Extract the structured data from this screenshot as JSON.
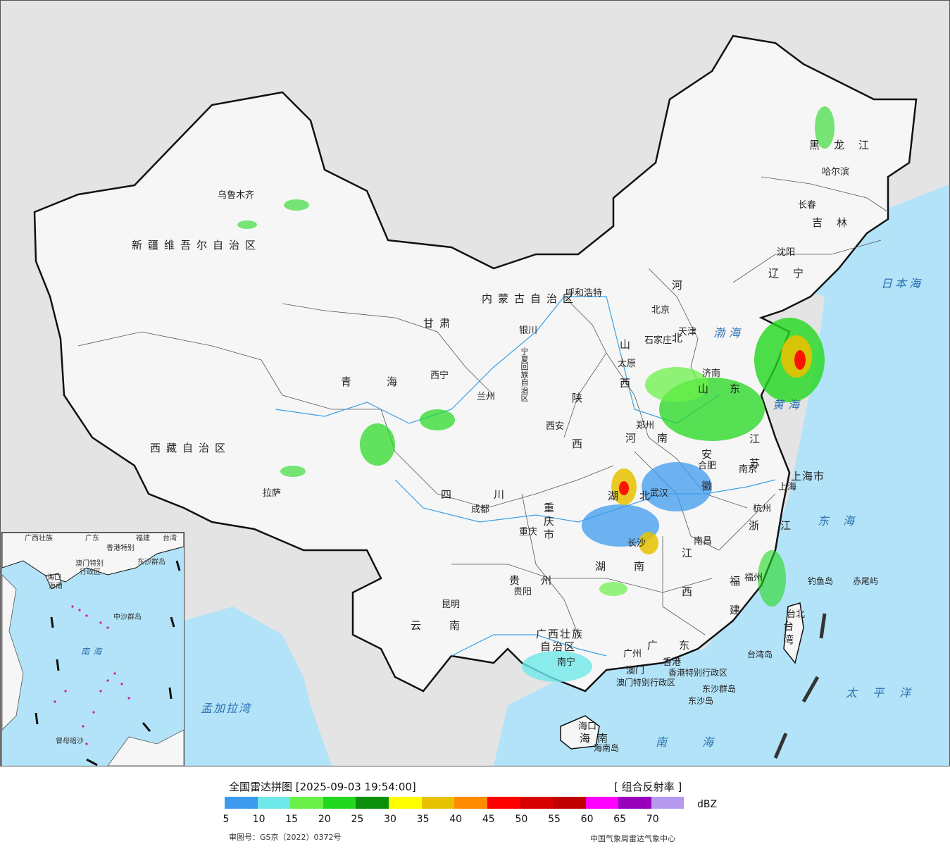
{
  "map": {
    "provinces": [
      {
        "id": "xinjiang",
        "name": "新疆维吾尔自治区"
      },
      {
        "id": "xizang",
        "name": "西藏自治区"
      },
      {
        "id": "qinghai",
        "name": "青海"
      },
      {
        "id": "gansu",
        "name": "甘肃"
      },
      {
        "id": "neimenggu",
        "name": "内蒙古自治区"
      },
      {
        "id": "heilongjiang",
        "name": "黑龙江"
      },
      {
        "id": "jilin",
        "name": "吉林"
      },
      {
        "id": "liaoning",
        "name": "辽宁"
      },
      {
        "id": "hebei",
        "name": "河北"
      },
      {
        "id": "shanxi",
        "name": "山西"
      },
      {
        "id": "shaanxi",
        "name": "陕西"
      },
      {
        "id": "sichuan",
        "name": "四川"
      },
      {
        "id": "henan",
        "name": "河南"
      },
      {
        "id": "shandong",
        "name": "山东"
      },
      {
        "id": "jiangsu",
        "name": "江苏"
      },
      {
        "id": "anhui",
        "name": "安徽"
      },
      {
        "id": "hubei",
        "name": "湖北"
      },
      {
        "id": "hunan",
        "name": "湖南"
      },
      {
        "id": "jiangxi",
        "name": "江西"
      },
      {
        "id": "zhejiang",
        "name": "浙江"
      },
      {
        "id": "fujian",
        "name": "福建"
      },
      {
        "id": "guizhou",
        "name": "贵州"
      },
      {
        "id": "yunnan",
        "name": "云南"
      },
      {
        "id": "guangdong",
        "name": "广东"
      },
      {
        "id": "guangxi_1",
        "name": "广西壮族"
      },
      {
        "id": "guangxi_2",
        "name": "自治区"
      },
      {
        "id": "hainan",
        "name": "海南"
      },
      {
        "id": "taiwan",
        "name": "台湾"
      },
      {
        "id": "chongqing",
        "name": "重庆市"
      },
      {
        "id": "shanghai",
        "name": "上海市"
      },
      {
        "id": "ningxia",
        "name": "宁夏回族自治区"
      },
      {
        "id": "hk",
        "name": "香港特别行政区"
      },
      {
        "id": "macau",
        "name": "澳门特别行政区"
      }
    ],
    "cities": [
      {
        "name": "乌鲁木齐"
      },
      {
        "name": "拉萨"
      },
      {
        "name": "西宁"
      },
      {
        "name": "兰州"
      },
      {
        "name": "银川"
      },
      {
        "name": "呼和浩特"
      },
      {
        "name": "北京"
      },
      {
        "name": "天津"
      },
      {
        "name": "石家庄"
      },
      {
        "name": "太原"
      },
      {
        "name": "济南"
      },
      {
        "name": "郑州"
      },
      {
        "name": "西安"
      },
      {
        "name": "成都"
      },
      {
        "name": "重庆"
      },
      {
        "name": "武汉"
      },
      {
        "name": "合肥"
      },
      {
        "name": "南京"
      },
      {
        "name": "上海"
      },
      {
        "name": "杭州"
      },
      {
        "name": "南昌"
      },
      {
        "name": "长沙"
      },
      {
        "name": "贵阳"
      },
      {
        "name": "昆明"
      },
      {
        "name": "南宁"
      },
      {
        "name": "广州"
      },
      {
        "name": "香港"
      },
      {
        "name": "澳门"
      },
      {
        "name": "海口"
      },
      {
        "name": "福州"
      },
      {
        "name": "台北"
      },
      {
        "name": "沈阳"
      },
      {
        "name": "长春"
      },
      {
        "name": "哈尔滨"
      }
    ],
    "seas": [
      {
        "name": "日本海"
      },
      {
        "name": "渤海"
      },
      {
        "name": "黄海"
      },
      {
        "name": "东海"
      },
      {
        "name": "太平洋"
      },
      {
        "name": "南海"
      },
      {
        "name": "孟加拉湾"
      }
    ],
    "islands": [
      {
        "name": "钓鱼岛"
      },
      {
        "name": "赤尾屿"
      },
      {
        "name": "台湾岛"
      },
      {
        "name": "东沙群岛"
      },
      {
        "name": "东沙岛"
      },
      {
        "name": "海南岛"
      }
    ],
    "inset": {
      "labels": [
        "广西壮族",
        "广东",
        "福建",
        "台湾",
        "香港特别",
        "澳门特别",
        "行政区",
        "东沙群岛",
        "海口",
        "海南",
        "中沙群岛",
        "南海",
        "曾母暗沙"
      ]
    }
  },
  "legend": {
    "title": "全国雷达拼图 [2025-09-03 19:54:00]",
    "product": "[ 组合反射率 ]",
    "unit": "dBZ",
    "colors": [
      "#3d9bef",
      "#6ee8e8",
      "#6bf04a",
      "#22d81e",
      "#0b8f0b",
      "#ffff00",
      "#e6c200",
      "#ff8c00",
      "#ff0000",
      "#d80000",
      "#c00000",
      "#ff00ff",
      "#9900bb",
      "#b59af0"
    ],
    "ticks": [
      "5",
      "10",
      "15",
      "20",
      "25",
      "30",
      "35",
      "40",
      "45",
      "50",
      "55",
      "60",
      "65",
      "70"
    ],
    "approval": "审图号：GS京（2022）0372号",
    "source": "中国气象局雷达气象中心"
  }
}
